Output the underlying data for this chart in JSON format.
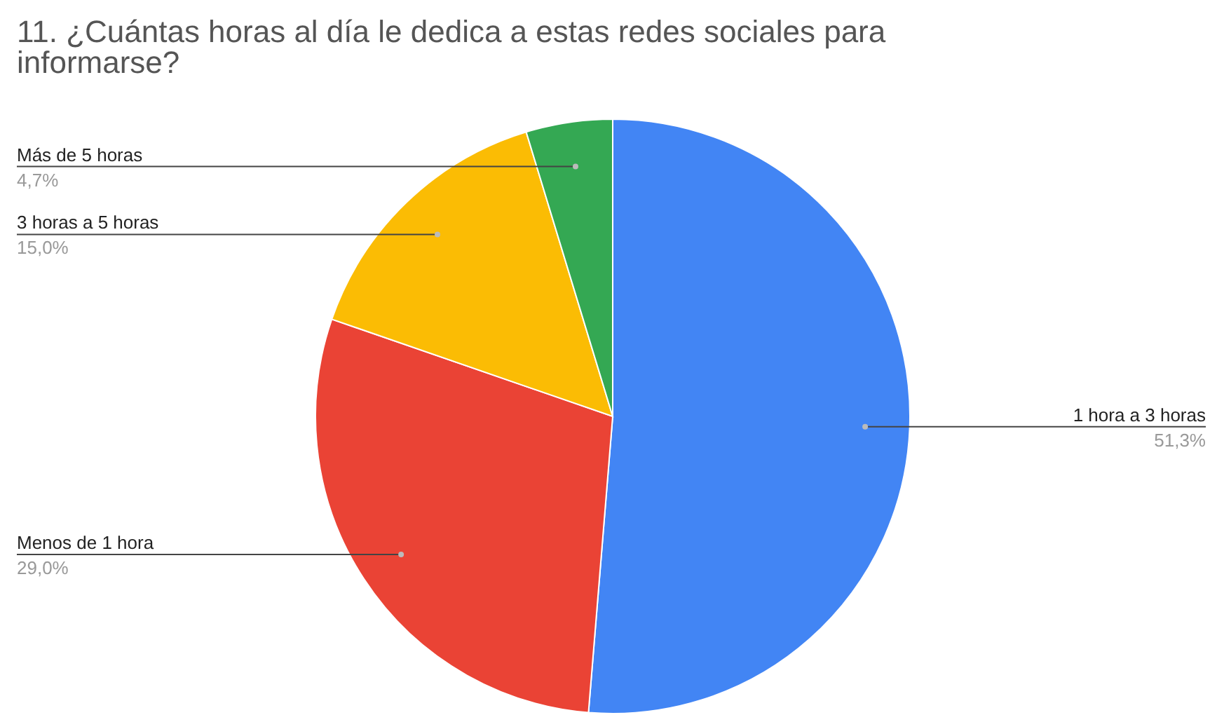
{
  "chart_data": {
    "type": "pie",
    "title": "11. ¿Cuántas horas al día le dedica a estas redes sociales para informarse?",
    "categories": [
      "1 hora a 3 horas",
      "Menos de 1 hora",
      "3 horas a 5 horas",
      "Más de 5 horas"
    ],
    "values": [
      51.3,
      29.0,
      15.0,
      4.7
    ],
    "colors": [
      "#4285f4",
      "#ea4335",
      "#fbbc04",
      "#34a853"
    ],
    "value_labels": [
      "51,3%",
      "29,0%",
      "15,0%",
      "4,7%"
    ]
  }
}
